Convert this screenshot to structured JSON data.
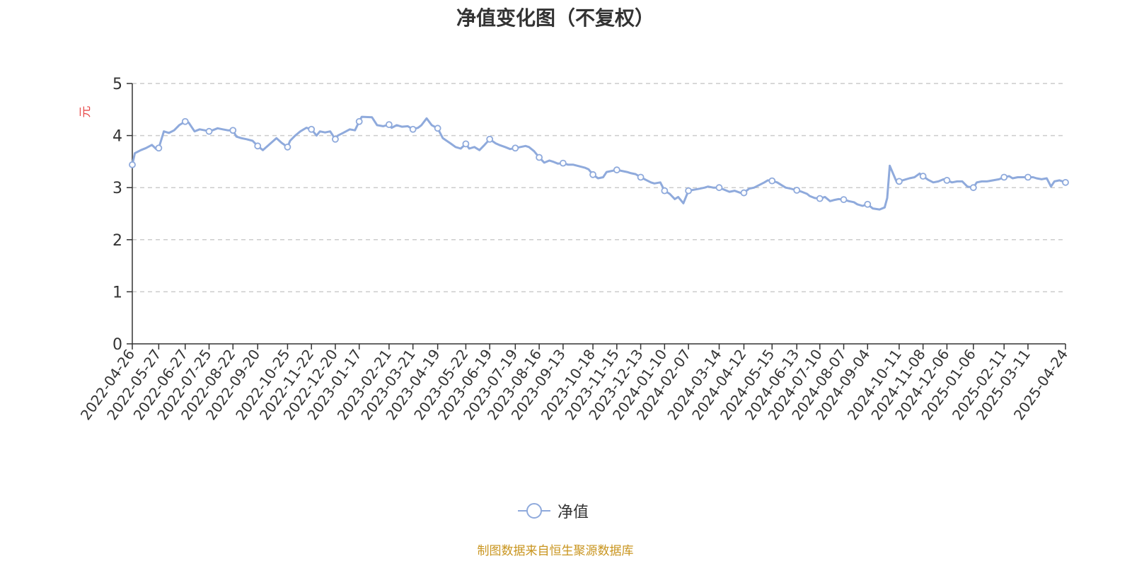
{
  "title": "净值变化图（不复权）",
  "source_text": "制图数据来自恒生聚源数据库",
  "colors": {
    "line": "#8faadc",
    "title": "#333333",
    "unit": "#e84b4b",
    "source": "#c9951f",
    "grid": "#cccccc",
    "axis": "#333333"
  },
  "chart_data": {
    "type": "line",
    "title": "净值变化图（不复权）",
    "ylabel": "元",
    "ylim": [
      0,
      5
    ],
    "yticks": [
      0,
      1,
      2,
      3,
      4,
      5
    ],
    "grid": "horizontal dashed",
    "legend": "bottom-center",
    "x_tick_labels": [
      "2022-04-26",
      "2022-05-27",
      "2022-06-27",
      "2022-07-25",
      "2022-08-22",
      "2022-09-20",
      "2022-10-25",
      "2022-11-22",
      "2022-12-20",
      "2023-01-17",
      "2023-02-21",
      "2023-03-21",
      "2023-04-19",
      "2023-05-22",
      "2023-06-19",
      "2023-07-19",
      "2023-08-16",
      "2023-09-13",
      "2023-10-18",
      "2023-11-15",
      "2023-12-13",
      "2024-01-10",
      "2024-02-07",
      "2024-03-14",
      "2024-04-12",
      "2024-05-15",
      "2024-06-13",
      "2024-07-10",
      "2024-08-07",
      "2024-09-04",
      "2024-10-11",
      "2024-11-08",
      "2024-12-06",
      "2025-01-06",
      "2025-02-11",
      "2025-03-11",
      "2025-04-24"
    ],
    "series": [
      {
        "name": "净值",
        "x": [
          "2022-04-26",
          "2022-04-29",
          "2022-05-06",
          "2022-05-12",
          "2022-05-19",
          "2022-05-24",
          "2022-05-27",
          "2022-06-02",
          "2022-06-08",
          "2022-06-14",
          "2022-06-20",
          "2022-06-27",
          "2022-07-01",
          "2022-07-08",
          "2022-07-14",
          "2022-07-20",
          "2022-07-25",
          "2022-07-29",
          "2022-08-04",
          "2022-08-10",
          "2022-08-16",
          "2022-08-22",
          "2022-08-26",
          "2022-09-01",
          "2022-09-07",
          "2022-09-14",
          "2022-09-20",
          "2022-09-26",
          "2022-10-12",
          "2022-10-18",
          "2022-10-25",
          "2022-10-28",
          "2022-11-03",
          "2022-11-09",
          "2022-11-16",
          "2022-11-22",
          "2022-11-28",
          "2022-12-02",
          "2022-12-08",
          "2022-12-14",
          "2022-12-20",
          "2022-12-23",
          "2022-12-29",
          "2023-01-06",
          "2023-01-12",
          "2023-01-17",
          "2023-01-20",
          "2023-02-01",
          "2023-02-07",
          "2023-02-14",
          "2023-02-21",
          "2023-02-24",
          "2023-03-02",
          "2023-03-08",
          "2023-03-15",
          "2023-03-21",
          "2023-03-27",
          "2023-03-31",
          "2023-04-06",
          "2023-04-12",
          "2023-04-19",
          "2023-04-25",
          "2023-05-04",
          "2023-05-10",
          "2023-05-16",
          "2023-05-22",
          "2023-05-26",
          "2023-06-01",
          "2023-06-07",
          "2023-06-13",
          "2023-06-19",
          "2023-06-26",
          "2023-06-30",
          "2023-07-07",
          "2023-07-13",
          "2023-07-19",
          "2023-07-25",
          "2023-07-31",
          "2023-08-04",
          "2023-08-10",
          "2023-08-16",
          "2023-08-22",
          "2023-08-28",
          "2023-09-01",
          "2023-09-07",
          "2023-09-13",
          "2023-09-19",
          "2023-09-25",
          "2023-10-09",
          "2023-10-13",
          "2023-10-18",
          "2023-10-24",
          "2023-10-30",
          "2023-11-03",
          "2023-11-09",
          "2023-11-15",
          "2023-11-21",
          "2023-11-27",
          "2023-12-01",
          "2023-12-07",
          "2023-12-13",
          "2023-12-19",
          "2023-12-25",
          "2023-12-29",
          "2024-01-05",
          "2024-01-10",
          "2024-01-16",
          "2024-01-22",
          "2024-01-26",
          "2024-02-01",
          "2024-02-07",
          "2024-02-20",
          "2024-02-26",
          "2024-03-01",
          "2024-03-07",
          "2024-03-14",
          "2024-03-20",
          "2024-03-26",
          "2024-04-01",
          "2024-04-08",
          "2024-04-12",
          "2024-04-18",
          "2024-04-24",
          "2024-05-06",
          "2024-05-10",
          "2024-05-15",
          "2024-05-21",
          "2024-05-27",
          "2024-05-31",
          "2024-06-06",
          "2024-06-13",
          "2024-06-19",
          "2024-06-25",
          "2024-06-28",
          "2024-07-04",
          "2024-07-10",
          "2024-07-16",
          "2024-07-22",
          "2024-07-26",
          "2024-08-01",
          "2024-08-07",
          "2024-08-13",
          "2024-08-19",
          "2024-08-23",
          "2024-08-29",
          "2024-09-04",
          "2024-09-10",
          "2024-09-18",
          "2024-09-24",
          "2024-09-27",
          "2024-09-30",
          "2024-10-08",
          "2024-10-11",
          "2024-10-17",
          "2024-10-23",
          "2024-10-29",
          "2024-11-04",
          "2024-11-08",
          "2024-11-14",
          "2024-11-20",
          "2024-11-26",
          "2024-12-02",
          "2024-12-06",
          "2024-12-12",
          "2024-12-18",
          "2024-12-24",
          "2024-12-30",
          "2025-01-06",
          "2025-01-10",
          "2025-01-16",
          "2025-01-22",
          "2025-02-05",
          "2025-02-11",
          "2025-02-17",
          "2025-02-21",
          "2025-02-27",
          "2025-03-05",
          "2025-03-11",
          "2025-03-17",
          "2025-03-21",
          "2025-03-27",
          "2025-04-02",
          "2025-04-07",
          "2025-04-11",
          "2025-04-17",
          "2025-04-24"
        ],
        "values": [
          3.44,
          3.66,
          3.72,
          3.76,
          3.82,
          3.74,
          3.76,
          4.08,
          4.05,
          4.1,
          4.2,
          4.27,
          4.25,
          4.08,
          4.12,
          4.1,
          4.08,
          4.1,
          4.14,
          4.12,
          4.1,
          4.1,
          3.98,
          3.95,
          3.93,
          3.9,
          3.8,
          3.72,
          3.95,
          3.86,
          3.78,
          3.9,
          4.0,
          4.08,
          4.15,
          4.12,
          4.0,
          4.08,
          4.06,
          4.08,
          3.93,
          4.0,
          4.05,
          4.12,
          4.1,
          4.27,
          4.36,
          4.35,
          4.2,
          4.18,
          4.21,
          4.15,
          4.2,
          4.17,
          4.18,
          4.12,
          4.15,
          4.2,
          4.33,
          4.2,
          4.14,
          3.95,
          3.85,
          3.78,
          3.75,
          3.84,
          3.75,
          3.78,
          3.72,
          3.82,
          3.93,
          3.85,
          3.82,
          3.78,
          3.74,
          3.76,
          3.78,
          3.8,
          3.78,
          3.7,
          3.58,
          3.48,
          3.52,
          3.5,
          3.46,
          3.47,
          3.44,
          3.44,
          3.38,
          3.35,
          3.25,
          3.18,
          3.2,
          3.3,
          3.32,
          3.34,
          3.32,
          3.3,
          3.28,
          3.26,
          3.2,
          3.15,
          3.1,
          3.08,
          3.1,
          2.94,
          2.88,
          2.78,
          2.82,
          2.7,
          2.94,
          2.98,
          3.0,
          3.02,
          3.0,
          3.0,
          2.96,
          2.92,
          2.94,
          2.9,
          2.9,
          2.98,
          3.0,
          3.1,
          3.14,
          3.13,
          3.1,
          3.04,
          3.0,
          2.98,
          2.95,
          2.92,
          2.88,
          2.84,
          2.8,
          2.79,
          2.82,
          2.74,
          2.76,
          2.78,
          2.77,
          2.74,
          2.72,
          2.68,
          2.65,
          2.68,
          2.6,
          2.58,
          2.62,
          2.8,
          3.42,
          3.11,
          3.12,
          3.15,
          3.18,
          3.2,
          3.27,
          3.22,
          3.15,
          3.1,
          3.12,
          3.16,
          3.14,
          3.1,
          3.12,
          3.12,
          3.02,
          3.0,
          3.1,
          3.12,
          3.12,
          3.16,
          3.2,
          3.22,
          3.18,
          3.2,
          3.2,
          3.2,
          3.2,
          3.18,
          3.16,
          3.18,
          3.02,
          3.12,
          3.14,
          3.1
        ]
      }
    ]
  }
}
